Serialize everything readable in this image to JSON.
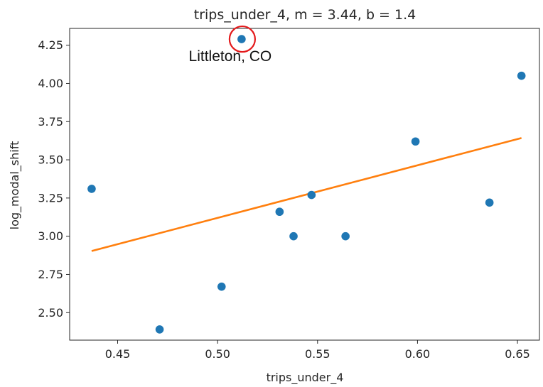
{
  "chart_data": {
    "type": "scatter",
    "title": "trips_under_4, m = 3.44, b = 1.4",
    "xlabel": "trips_under_4",
    "ylabel": "log_modal_shift",
    "xlim": [
      0.426,
      0.661
    ],
    "ylim": [
      2.32,
      4.36
    ],
    "xticks": [
      0.45,
      0.5,
      0.55,
      0.6,
      0.65
    ],
    "xtick_labels": [
      "0.45",
      "0.50",
      "0.55",
      "0.60",
      "0.65"
    ],
    "yticks": [
      2.5,
      2.75,
      3.0,
      3.25,
      3.5,
      3.75,
      4.0,
      4.25
    ],
    "ytick_labels": [
      "2.50",
      "2.75",
      "3.00",
      "3.25",
      "3.50",
      "3.75",
      "4.00",
      "4.25"
    ],
    "grid": false,
    "points": {
      "x": [
        0.437,
        0.471,
        0.502,
        0.512,
        0.531,
        0.538,
        0.547,
        0.564,
        0.599,
        0.636,
        0.652
      ],
      "y": [
        3.31,
        2.39,
        2.67,
        4.29,
        3.16,
        3.0,
        3.27,
        3.0,
        3.62,
        3.22,
        4.05
      ],
      "color": "#1f77b4"
    },
    "fit_line": {
      "slope": 3.44,
      "intercept": 1.4,
      "x_range": [
        0.437,
        0.652
      ],
      "color": "#ff7f0e"
    },
    "annotations": [
      {
        "text": "Littleton, CO",
        "x": 0.512,
        "y": 4.29,
        "marker": "red-circle",
        "color": "#e41a1c"
      }
    ]
  }
}
